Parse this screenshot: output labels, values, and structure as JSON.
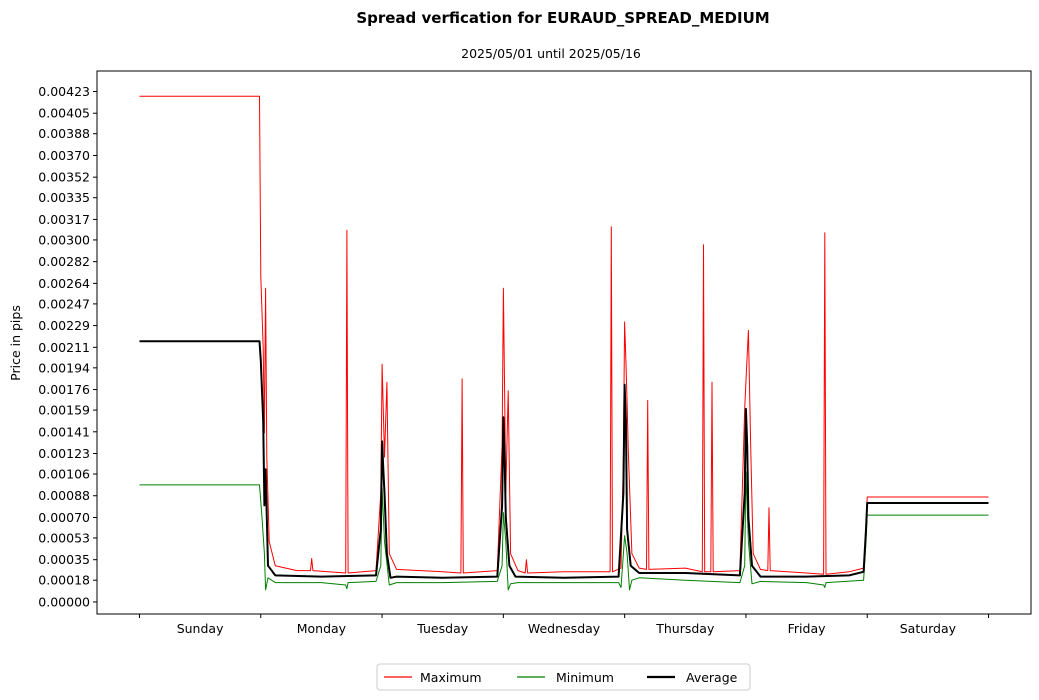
{
  "chart_data": {
    "type": "line",
    "title": "Spread verfication for EURAUD_SPREAD_MEDIUM",
    "subtitle": "2025/05/01 until 2025/05/16",
    "ylabel": "Price in pips",
    "xlabel": "",
    "categories": [
      "Sunday",
      "Monday",
      "Tuesday",
      "Wednesday",
      "Thursday",
      "Friday",
      "Saturday"
    ],
    "xlim": [
      -0.35,
      7.35
    ],
    "ylim": [
      -0.0001,
      0.0044
    ],
    "yticks": [
      "0.00000",
      "0.00018",
      "0.00035",
      "0.00053",
      "0.00070",
      "0.00088",
      "0.00106",
      "0.00123",
      "0.00141",
      "0.00159",
      "0.00176",
      "0.00194",
      "0.00211",
      "0.00229",
      "0.00247",
      "0.00264",
      "0.00282",
      "0.00300",
      "0.00317",
      "0.00335",
      "0.00352",
      "0.00370",
      "0.00388",
      "0.00405",
      "0.00423"
    ],
    "legend_position": "bottom-center",
    "grid": false,
    "series": [
      {
        "name": "Maximum",
        "color": "#ff0000",
        "linewidth": 1,
        "points": [
          [
            0,
            0.00419
          ],
          [
            0.99,
            0.00419
          ],
          [
            1.0,
            0.0027
          ],
          [
            1.02,
            0.0021
          ],
          [
            1.03,
            0.0014
          ],
          [
            1.04,
            0.0026
          ],
          [
            1.05,
            0.0012
          ],
          [
            1.07,
            0.0005
          ],
          [
            1.12,
            0.0003
          ],
          [
            1.3,
            0.00026
          ],
          [
            1.41,
            0.00026
          ],
          [
            1.42,
            0.00036
          ],
          [
            1.43,
            0.00026
          ],
          [
            1.7,
            0.00024
          ],
          [
            1.71,
            0.00308
          ],
          [
            1.72,
            0.00024
          ],
          [
            1.95,
            0.00026
          ],
          [
            1.99,
            0.0009
          ],
          [
            2.0,
            0.00197
          ],
          [
            2.02,
            0.0012
          ],
          [
            2.04,
            0.00182
          ],
          [
            2.06,
            0.0004
          ],
          [
            2.12,
            0.00027
          ],
          [
            2.5,
            0.00025
          ],
          [
            2.65,
            0.00024
          ],
          [
            2.66,
            0.00185
          ],
          [
            2.67,
            0.00024
          ],
          [
            2.95,
            0.00026
          ],
          [
            2.99,
            0.0013
          ],
          [
            3.0,
            0.0026
          ],
          [
            3.02,
            0.0009
          ],
          [
            3.04,
            0.00175
          ],
          [
            3.06,
            0.0004
          ],
          [
            3.12,
            0.00026
          ],
          [
            3.18,
            0.00024
          ],
          [
            3.19,
            0.00035
          ],
          [
            3.2,
            0.00024
          ],
          [
            3.5,
            0.00025
          ],
          [
            3.88,
            0.00025
          ],
          [
            3.89,
            0.00311
          ],
          [
            3.9,
            0.00025
          ],
          [
            3.97,
            0.00028
          ],
          [
            3.99,
            0.0012
          ],
          [
            4.0,
            0.00232
          ],
          [
            4.01,
            0.002
          ],
          [
            4.02,
            0.00165
          ],
          [
            4.03,
            0.00125
          ],
          [
            4.06,
            0.0004
          ],
          [
            4.12,
            0.00028
          ],
          [
            4.18,
            0.00027
          ],
          [
            4.19,
            0.00167
          ],
          [
            4.2,
            0.00027
          ],
          [
            4.5,
            0.00028
          ],
          [
            4.64,
            0.00025
          ],
          [
            4.65,
            0.00296
          ],
          [
            4.66,
            0.00025
          ],
          [
            4.71,
            0.00025
          ],
          [
            4.72,
            0.00182
          ],
          [
            4.73,
            0.00025
          ],
          [
            4.95,
            0.00026
          ],
          [
            4.99,
            0.0016
          ],
          [
            5.0,
            0.00182
          ],
          [
            5.02,
            0.00225
          ],
          [
            5.04,
            0.00125
          ],
          [
            5.06,
            0.0004
          ],
          [
            5.12,
            0.00027
          ],
          [
            5.18,
            0.00026
          ],
          [
            5.19,
            0.00078
          ],
          [
            5.2,
            0.00026
          ],
          [
            5.5,
            0.00024
          ],
          [
            5.64,
            0.00023
          ],
          [
            5.65,
            0.00306
          ],
          [
            5.66,
            0.00023
          ],
          [
            5.85,
            0.00025
          ],
          [
            5.97,
            0.00028
          ],
          [
            5.99,
            0.0006
          ],
          [
            6.0,
            0.00087
          ],
          [
            7.0,
            0.00087
          ]
        ]
      },
      {
        "name": "Minimum",
        "color": "#008000",
        "linewidth": 1,
        "points": [
          [
            0,
            0.00097
          ],
          [
            0.99,
            0.00097
          ],
          [
            1.01,
            0.0007
          ],
          [
            1.03,
            0.0004
          ],
          [
            1.04,
            0.0001
          ],
          [
            1.06,
            0.0002
          ],
          [
            1.12,
            0.00016
          ],
          [
            1.5,
            0.00016
          ],
          [
            1.7,
            0.00014
          ],
          [
            1.71,
            0.00011
          ],
          [
            1.72,
            0.00016
          ],
          [
            1.95,
            0.00017
          ],
          [
            1.99,
            0.0003
          ],
          [
            2.0,
            0.00094
          ],
          [
            2.02,
            0.0005
          ],
          [
            2.06,
            0.00014
          ],
          [
            2.12,
            0.00016
          ],
          [
            2.5,
            0.00016
          ],
          [
            2.95,
            0.00017
          ],
          [
            2.99,
            0.0003
          ],
          [
            3.0,
            0.00074
          ],
          [
            3.02,
            0.0005
          ],
          [
            3.04,
            0.0001
          ],
          [
            3.06,
            0.00015
          ],
          [
            3.12,
            0.00016
          ],
          [
            3.5,
            0.00016
          ],
          [
            3.95,
            0.00016
          ],
          [
            3.97,
            0.00012
          ],
          [
            3.99,
            0.0004
          ],
          [
            4.0,
            0.00055
          ],
          [
            4.02,
            0.0004
          ],
          [
            4.04,
            0.0001
          ],
          [
            4.06,
            0.00018
          ],
          [
            4.12,
            0.0002
          ],
          [
            4.5,
            0.00018
          ],
          [
            4.95,
            0.00016
          ],
          [
            4.99,
            0.0003
          ],
          [
            5.0,
            0.00108
          ],
          [
            5.02,
            0.0005
          ],
          [
            5.05,
            0.00015
          ],
          [
            5.12,
            0.00017
          ],
          [
            5.5,
            0.00016
          ],
          [
            5.64,
            0.00014
          ],
          [
            5.65,
            0.00012
          ],
          [
            5.66,
            0.00016
          ],
          [
            5.97,
            0.00018
          ],
          [
            5.99,
            0.0005
          ],
          [
            6.0,
            0.00072
          ],
          [
            7.0,
            0.00072
          ]
        ]
      },
      {
        "name": "Average",
        "color": "#000000",
        "linewidth": 2,
        "points": [
          [
            0,
            0.00216
          ],
          [
            0.99,
            0.00216
          ],
          [
            1.0,
            0.002
          ],
          [
            1.02,
            0.0015
          ],
          [
            1.03,
            0.0008
          ],
          [
            1.04,
            0.0011
          ],
          [
            1.06,
            0.0003
          ],
          [
            1.12,
            0.00022
          ],
          [
            1.5,
            0.00021
          ],
          [
            1.95,
            0.00022
          ],
          [
            1.99,
            0.0006
          ],
          [
            2.0,
            0.00133
          ],
          [
            2.01,
            0.0011
          ],
          [
            2.02,
            0.0009
          ],
          [
            2.04,
            0.0004
          ],
          [
            2.07,
            0.0002
          ],
          [
            2.12,
            0.00021
          ],
          [
            2.5,
            0.0002
          ],
          [
            2.95,
            0.00021
          ],
          [
            2.99,
            0.0008
          ],
          [
            3.0,
            0.00153
          ],
          [
            3.01,
            0.0012
          ],
          [
            3.02,
            0.0007
          ],
          [
            3.05,
            0.0003
          ],
          [
            3.1,
            0.00021
          ],
          [
            3.5,
            0.0002
          ],
          [
            3.95,
            0.00021
          ],
          [
            3.99,
            0.0009
          ],
          [
            4.0,
            0.0018
          ],
          [
            4.01,
            0.0015
          ],
          [
            4.02,
            0.0006
          ],
          [
            4.05,
            0.0003
          ],
          [
            4.12,
            0.00024
          ],
          [
            4.5,
            0.00024
          ],
          [
            4.95,
            0.00022
          ],
          [
            4.99,
            0.0009
          ],
          [
            5.0,
            0.0016
          ],
          [
            5.01,
            0.0013
          ],
          [
            5.02,
            0.0007
          ],
          [
            5.05,
            0.0003
          ],
          [
            5.12,
            0.00021
          ],
          [
            5.5,
            0.00021
          ],
          [
            5.85,
            0.00022
          ],
          [
            5.97,
            0.00025
          ],
          [
            5.99,
            0.0006
          ],
          [
            6.0,
            0.00082
          ],
          [
            7.0,
            0.00082
          ]
        ]
      }
    ]
  }
}
